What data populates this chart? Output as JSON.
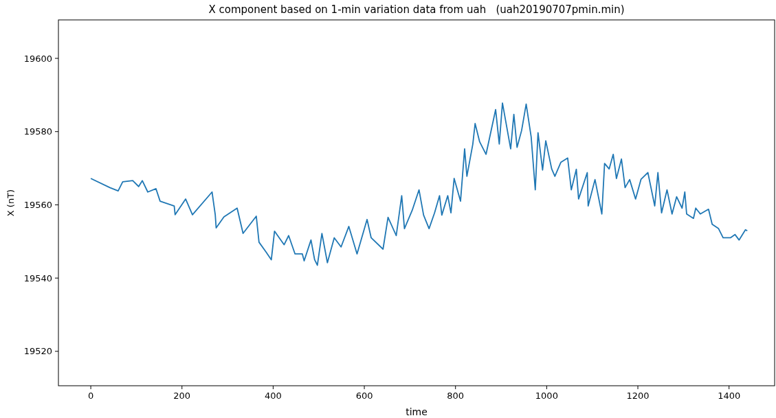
{
  "chart_data": {
    "type": "line",
    "title": "X component based on 1-min variation data from uah   (uah20190707pmin.min)",
    "xlabel": "time",
    "ylabel": "X (nT)",
    "xlim": [
      -71,
      1500
    ],
    "ylim": [
      19510.6,
      19610.5
    ],
    "xticks": [
      0,
      200,
      400,
      600,
      800,
      1000,
      1200,
      1400
    ],
    "yticks": [
      19520,
      19540,
      19560,
      19580,
      19600
    ],
    "grid": false,
    "series": [
      {
        "color": "#1f77b4",
        "x": [
          0,
          42,
          60,
          70,
          92,
          105,
          113,
          125,
          143,
          152,
          183,
          185,
          208,
          223,
          266,
          273,
          275,
          292,
          321,
          334,
          363,
          369,
          384,
          396,
          403,
          424,
          434,
          448,
          464,
          468,
          483,
          491,
          497,
          507,
          519,
          534,
          549,
          566,
          584,
          606,
          615,
          641,
          652,
          670,
          682,
          688,
          705,
          720,
          730,
          742,
          754,
          765,
          770,
          783,
          790,
          797,
          811,
          820,
          825,
          838,
          843,
          853,
          867,
          888,
          896,
          903,
          921,
          928,
          935,
          945,
          955,
          966,
          975,
          981,
          991,
          998,
          1011,
          1018,
          1031,
          1046,
          1054,
          1065,
          1070,
          1089,
          1091,
          1106,
          1121,
          1127,
          1137,
          1146,
          1153,
          1164,
          1172,
          1182,
          1195,
          1207,
          1222,
          1237,
          1244,
          1252,
          1264,
          1275,
          1285,
          1297,
          1303,
          1307,
          1322,
          1327,
          1337,
          1355,
          1363,
          1377,
          1387,
          1403,
          1413,
          1422,
          1436,
          1440
        ],
        "values": [
          19567.2,
          19564.7,
          19563.8,
          19566.3,
          19566.6,
          19565,
          19566.6,
          19563.5,
          19564.4,
          19561,
          19559.7,
          19557.3,
          19561.6,
          19557.3,
          19563.5,
          19557.3,
          19553.7,
          19556.7,
          19559.1,
          19552.2,
          19556.9,
          19549.8,
          19547.2,
          19545,
          19552.8,
          19549.1,
          19551.6,
          19546.6,
          19546.6,
          19544.7,
          19550.4,
          19545,
          19543.5,
          19552.2,
          19544.2,
          19551,
          19548.5,
          19554.1,
          19546.6,
          19556,
          19551,
          19547.9,
          19556.6,
          19551.6,
          19562.5,
          19553.5,
          19558.5,
          19564.1,
          19557.2,
          19553.5,
          19557.8,
          19562.5,
          19557.2,
          19562.5,
          19557.8,
          19567.2,
          19561,
          19575.3,
          19567.8,
          19576.6,
          19582.2,
          19577.2,
          19573.8,
          19586,
          19576.6,
          19587.8,
          19575.3,
          19584.7,
          19575.7,
          19580.3,
          19587.5,
          19578.5,
          19564.1,
          19579.7,
          19569.5,
          19577.5,
          19569.8,
          19567.8,
          19571.6,
          19572.8,
          19564.1,
          19569.7,
          19561.6,
          19568.8,
          19559.7,
          19566.9,
          19557.5,
          19571.3,
          19569.8,
          19573.8,
          19567.2,
          19572.5,
          19564.7,
          19566.9,
          19561.6,
          19567,
          19568.8,
          19559.7,
          19568.8,
          19557.8,
          19564.1,
          19557.5,
          19562.2,
          19559.1,
          19563.5,
          19557.5,
          19556.3,
          19559.1,
          19557.5,
          19558.8,
          19554.7,
          19553.5,
          19551,
          19551,
          19551.9,
          19550.4,
          19553.2,
          19552.9
        ]
      }
    ]
  }
}
